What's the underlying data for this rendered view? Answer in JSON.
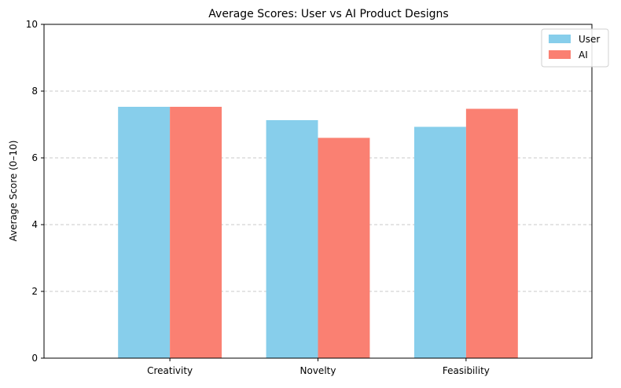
{
  "chart_data": {
    "type": "bar",
    "title": "Average Scores: User vs AI Product Designs",
    "xlabel": "",
    "ylabel": "Average Score (0–10)",
    "categories": [
      "Creativity",
      "Novelty",
      "Feasibility"
    ],
    "series": [
      {
        "name": "User",
        "color": "#87CEEB",
        "values": [
          7.53,
          7.13,
          6.93
        ]
      },
      {
        "name": "AI",
        "color": "#FA8072",
        "values": [
          7.53,
          6.6,
          7.47
        ]
      }
    ],
    "ylim": [
      0,
      10
    ],
    "yticks": [
      0,
      2,
      4,
      6,
      8,
      10
    ],
    "grid": "y, dashed",
    "legend_position": "top-right"
  }
}
